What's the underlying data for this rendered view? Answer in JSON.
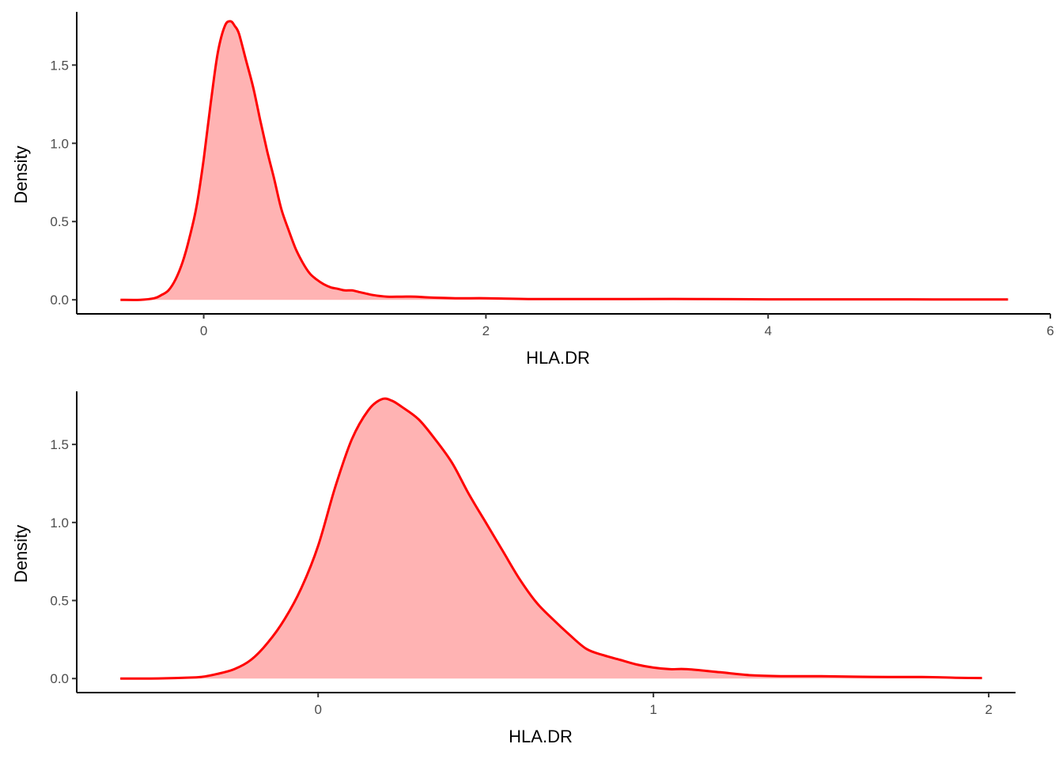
{
  "colors": {
    "line": "#ff0000",
    "fill": "#ffb3b3",
    "axis": "#000000",
    "tick_text": "#4d4d4d"
  },
  "chart_data": [
    {
      "type": "area",
      "title": "",
      "xlabel": "HLA.DR",
      "ylabel": "Density",
      "xlim": [
        -0.9,
        6.0
      ],
      "ylim": [
        -0.09,
        1.84
      ],
      "xticks": [
        0,
        2,
        4,
        6
      ],
      "xtick_labels": [
        "0",
        "2",
        "4",
        "6"
      ],
      "yticks": [
        0.0,
        0.5,
        1.0,
        1.5
      ],
      "ytick_labels": [
        "0.0",
        "0.5",
        "1.0",
        "1.5"
      ],
      "grid": false,
      "series": [
        {
          "x": [
            -0.59,
            -0.45,
            -0.35,
            -0.3,
            -0.25,
            -0.2,
            -0.15,
            -0.1,
            -0.05,
            0.0,
            0.05,
            0.1,
            0.15,
            0.19,
            0.22,
            0.25,
            0.3,
            0.35,
            0.4,
            0.45,
            0.5,
            0.55,
            0.6,
            0.65,
            0.7,
            0.75,
            0.8,
            0.85,
            0.9,
            0.95,
            1.0,
            1.05,
            1.1,
            1.15,
            1.2,
            1.3,
            1.4,
            1.5,
            1.6,
            1.8,
            2.0,
            2.3,
            2.6,
            3.0,
            3.5,
            4.0,
            4.5,
            5.0,
            5.3,
            5.7
          ],
          "y": [
            0.0,
            0.0,
            0.01,
            0.03,
            0.06,
            0.13,
            0.24,
            0.4,
            0.6,
            0.9,
            1.26,
            1.58,
            1.75,
            1.78,
            1.75,
            1.7,
            1.53,
            1.36,
            1.15,
            0.95,
            0.77,
            0.58,
            0.45,
            0.33,
            0.24,
            0.17,
            0.13,
            0.1,
            0.08,
            0.07,
            0.06,
            0.06,
            0.05,
            0.04,
            0.03,
            0.02,
            0.02,
            0.02,
            0.015,
            0.01,
            0.01,
            0.005,
            0.005,
            0.005,
            0.005,
            0.003,
            0.003,
            0.003,
            0.002,
            0.002
          ]
        }
      ]
    },
    {
      "type": "area",
      "title": "",
      "xlabel": "HLA.DR",
      "ylabel": "Density",
      "xlim": [
        -0.72,
        2.08
      ],
      "ylim": [
        -0.09,
        1.84
      ],
      "xticks": [
        0,
        1,
        2
      ],
      "xtick_labels": [
        "0",
        "1",
        "2"
      ],
      "yticks": [
        0.0,
        0.5,
        1.0,
        1.5
      ],
      "ytick_labels": [
        "0.0",
        "0.5",
        "1.0",
        "1.5"
      ],
      "grid": false,
      "series": [
        {
          "x": [
            -0.59,
            -0.5,
            -0.4,
            -0.35,
            -0.3,
            -0.25,
            -0.2,
            -0.15,
            -0.1,
            -0.05,
            0.0,
            0.05,
            0.1,
            0.15,
            0.19,
            0.22,
            0.25,
            0.3,
            0.35,
            0.4,
            0.45,
            0.5,
            0.55,
            0.6,
            0.65,
            0.7,
            0.75,
            0.8,
            0.85,
            0.9,
            0.95,
            1.0,
            1.05,
            1.1,
            1.2,
            1.3,
            1.4,
            1.5,
            1.6,
            1.7,
            1.8,
            1.9,
            1.98
          ],
          "y": [
            0.0,
            0.0,
            0.005,
            0.01,
            0.03,
            0.06,
            0.12,
            0.23,
            0.38,
            0.58,
            0.85,
            1.22,
            1.53,
            1.72,
            1.79,
            1.78,
            1.74,
            1.66,
            1.53,
            1.38,
            1.18,
            1.0,
            0.82,
            0.64,
            0.49,
            0.38,
            0.28,
            0.19,
            0.15,
            0.12,
            0.09,
            0.07,
            0.06,
            0.06,
            0.04,
            0.02,
            0.015,
            0.015,
            0.012,
            0.01,
            0.01,
            0.005,
            0.003
          ]
        }
      ]
    }
  ]
}
